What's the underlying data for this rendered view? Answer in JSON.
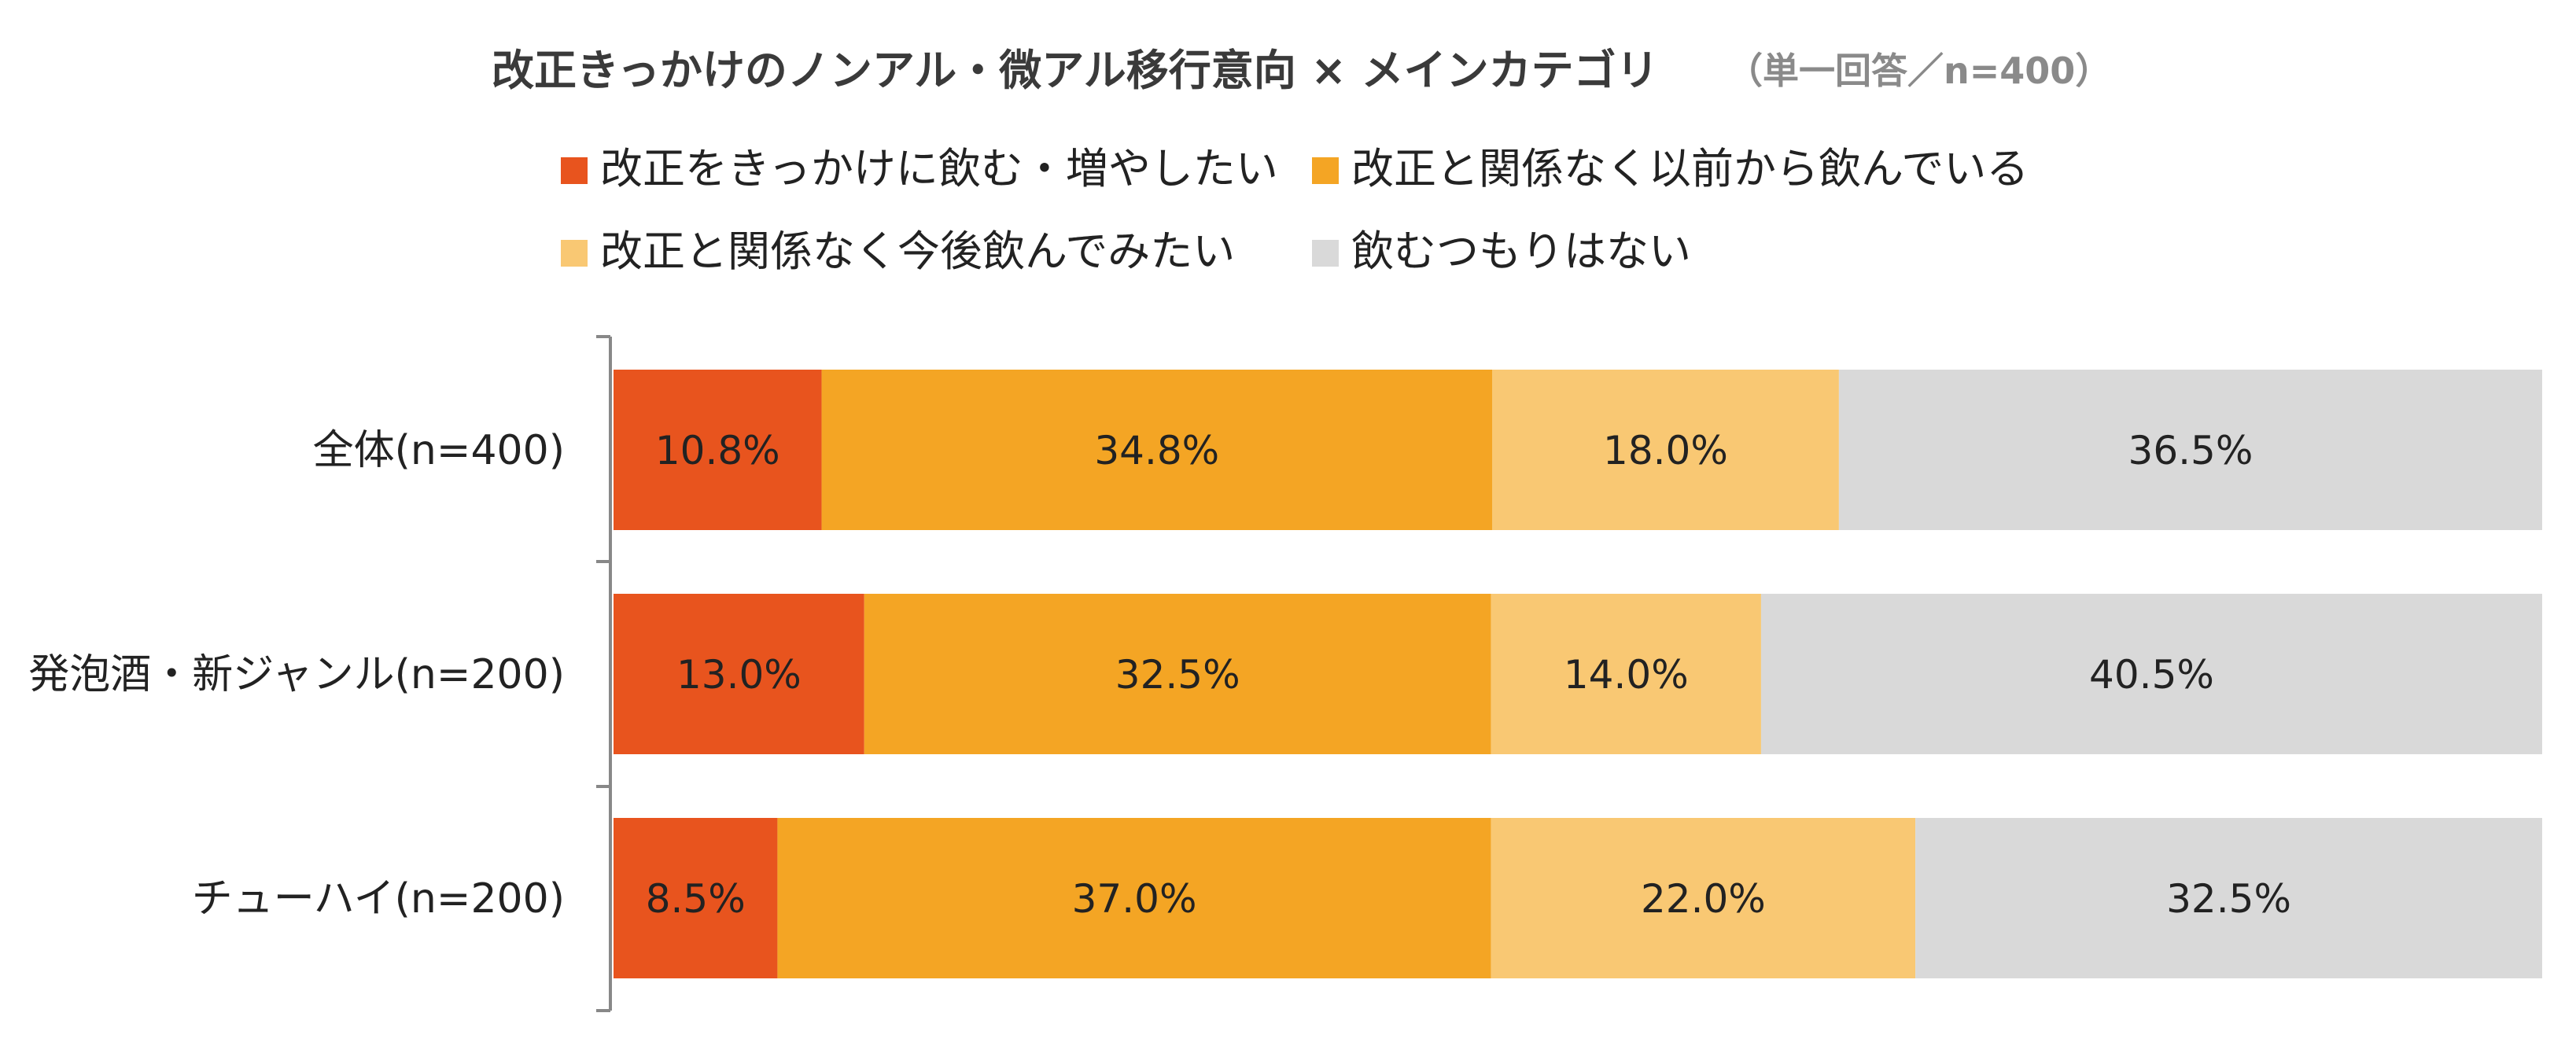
{
  "chart_data": {
    "type": "bar",
    "orientation": "horizontal",
    "stacked": true,
    "percent_stacked": true,
    "title": "改正きっかけのノンアル・微アル移行意向 × メインカテゴリ",
    "subtitle": "（単一回答／n=400）",
    "categories": [
      "全体(n=400)",
      "発泡酒・新ジャンル(n=200)",
      "チューハイ(n=200)"
    ],
    "series": [
      {
        "name": "改正をきっかけに飲む・増やしたい",
        "color": "#E8541E",
        "values": [
          10.8,
          13.0,
          8.5
        ],
        "labels": [
          "10.8%",
          "13.0%",
          "8.5%"
        ]
      },
      {
        "name": "改正と関係なく以前から飲んでいる",
        "color": "#F4A524",
        "values": [
          34.8,
          32.5,
          37.0
        ],
        "labels": [
          "34.8%",
          "32.5%",
          "37.0%"
        ]
      },
      {
        "name": "改正と関係なく今後飲んでみたい",
        "color": "#F9C873",
        "values": [
          18.0,
          14.0,
          22.0
        ],
        "labels": [
          "18.0%",
          "14.0%",
          "22.0%"
        ]
      },
      {
        "name": "飲むつもりはない",
        "color": "#D9D9D9",
        "values": [
          36.5,
          40.5,
          32.5
        ],
        "labels": [
          "36.5%",
          "40.5%",
          "32.5%"
        ]
      }
    ],
    "xlim": [
      0,
      100
    ],
    "grid": false,
    "legend_position": "top"
  }
}
